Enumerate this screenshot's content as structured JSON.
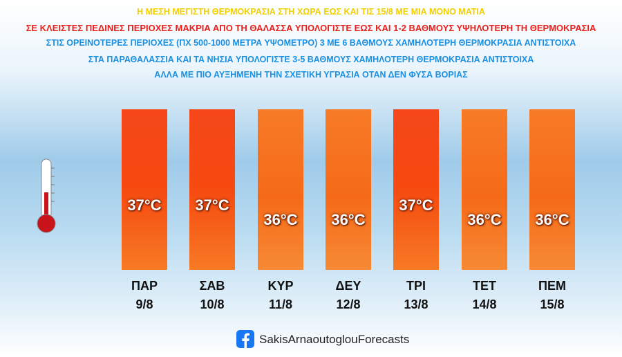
{
  "header": {
    "lines": [
      "Η ΜΕΣΗ ΜΕΓΙΣΤΗ ΘΕΡΜΟΚΡΑΣΙΑ ΣΤΗ ΧΩΡΑ ΕΩΣ ΚΑΙ ΤΙΣ 15/8 ΜΕ ΜΙΑ ΜΟΝΟ ΜΑΤΙΑ",
      "ΣΕ ΚΛΕΙΣΤΕΣ ΠΕΔΙΝΕΣ ΠΕΡΙΟΧΕΣ ΜΑΚΡΙΑ ΑΠΟ ΤΗ ΘΑΛΑΣΣΑ ΥΠΟΛΟΓΙΣΤΕ ΕΩΣ ΚΑΙ 1-2 ΒΑΘΜΟΥΣ ΥΨΗΛΟΤΕΡΗ ΤΗ ΘΕΡΜΟΚΡΑΣΙΑ",
      "ΣΤΙΣ ΟΡΕΙΝΟΤΕΡΕΣ ΠΕΡΙΟΧΕΣ (ΠΧ 500-1000 ΜΕΤΡΑ ΥΨΟΜΕΤΡΟ) 3 ΜΕ 6 ΒΑΘΜΟΥΣ ΧΑΜΗΛΟΤΕΡΗ ΘΕΡΜΟΚΡΑΣΙΑ ΑΝΤΙΣΤΟΙΧΑ",
      "ΣΤΑ ΠΑΡΑΘΑΛΑΣΣΙΑ ΚΑΙ ΤΑ ΝΗΣΙΑ ΥΠΟΛΟΓΙΣΤΕ 3-5 ΒΑΘΜΟΥΣ ΧΑΜΗΛΟΤΕΡΗ ΘΕΡΜΟΚΡΑΣΙΑ ΑΝΤΙΣΤΟΙΧΑ",
      "ΑΛΛΑ ΜΕ ΠΙΟ ΑΥΞΗΜΕΝΗ ΤΗΝ ΣΧΕΤΙΚΗ ΥΓΡΑΣΙΑ ΟΤΑΝ ΔΕΝ ΦΥΣΑ ΒΟΡΙΑΣ"
    ]
  },
  "days": [
    {
      "day": "ΠΑΡ",
      "date": "9/8",
      "temp": "37°C"
    },
    {
      "day": "ΣΑΒ",
      "date": "10/8",
      "temp": "37°C"
    },
    {
      "day": "ΚΥΡ",
      "date": "11/8",
      "temp": "36°C"
    },
    {
      "day": "ΔΕΥ",
      "date": "12/8",
      "temp": "36°C"
    },
    {
      "day": "ΤΡΙ",
      "date": "13/8",
      "temp": "37°C"
    },
    {
      "day": "ΤΕΤ",
      "date": "14/8",
      "temp": "36°C"
    },
    {
      "day": "ΠΕΜ",
      "date": "15/8",
      "temp": "36°C"
    }
  ],
  "footer": {
    "text": "SakisArnaoutoglouForecasts"
  }
}
